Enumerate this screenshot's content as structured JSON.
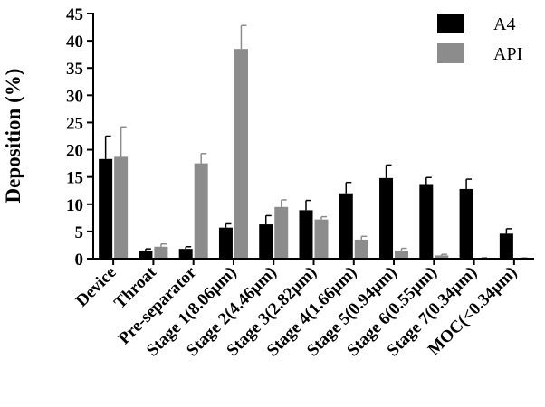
{
  "chart_data": {
    "type": "bar",
    "title": "",
    "xlabel": "",
    "ylabel": "Deposition (%)",
    "ylim": [
      0,
      45
    ],
    "yticks": [
      0,
      5,
      10,
      15,
      20,
      25,
      30,
      35,
      40,
      45
    ],
    "grid": false,
    "legend_position": "top-right",
    "categories": [
      "Device",
      "Throat",
      "Pre-separator",
      "Stage 1(8.06μm)",
      "Stage 2(4.46μm)",
      "Stage 3(2.82μm)",
      "Stage 4(1.66μm)",
      "Stage 5(0.94μm)",
      "Stage 6(0.55μm)",
      "Stage 7(0.34μm)",
      "MOC(<0.34μm)"
    ],
    "series": [
      {
        "name": "A4",
        "color": "#000000",
        "values": [
          18.3,
          1.5,
          1.8,
          5.7,
          6.3,
          8.9,
          12.0,
          14.8,
          13.7,
          12.8,
          4.6
        ],
        "errors": [
          4.2,
          0.3,
          0.4,
          0.7,
          1.6,
          1.8,
          2.0,
          2.4,
          1.2,
          1.8,
          0.9
        ]
      },
      {
        "name": "API",
        "color": "#8c8c8c",
        "values": [
          18.7,
          2.2,
          17.5,
          38.5,
          9.5,
          7.2,
          3.5,
          1.5,
          0.6,
          0.15,
          0.1
        ],
        "errors": [
          5.5,
          0.5,
          1.8,
          4.3,
          1.3,
          0.5,
          0.6,
          0.4,
          0.2,
          0.05,
          0.05
        ]
      }
    ]
  }
}
